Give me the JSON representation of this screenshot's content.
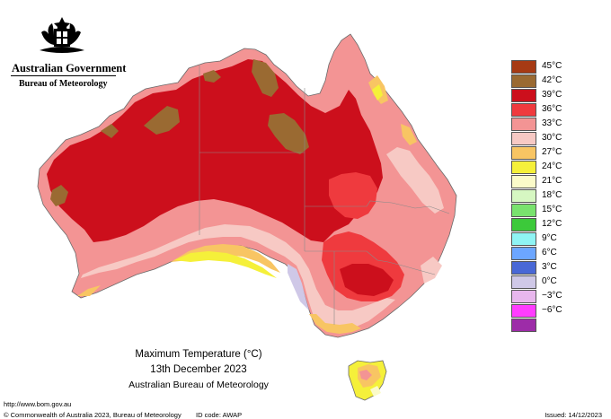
{
  "header": {
    "gov_name": "Australian Government",
    "bureau_name": "Bureau of Meteorology"
  },
  "legend": {
    "items": [
      {
        "label": "45°C",
        "color": "#a63a14"
      },
      {
        "label": "42°C",
        "color": "#9a6a32"
      },
      {
        "label": "39°C",
        "color": "#cc0f1c"
      },
      {
        "label": "36°C",
        "color": "#ef3a3e"
      },
      {
        "label": "33°C",
        "color": "#f39494"
      },
      {
        "label": "30°C",
        "color": "#f7c9c4"
      },
      {
        "label": "27°C",
        "color": "#f8c563"
      },
      {
        "label": "24°C",
        "color": "#f5f03a"
      },
      {
        "label": "21°C",
        "color": "#fbfbc9"
      },
      {
        "label": "18°C",
        "color": "#d6f7c2"
      },
      {
        "label": "15°C",
        "color": "#79e26e"
      },
      {
        "label": "12°C",
        "color": "#3cc93a"
      },
      {
        "label": "9°C",
        "color": "#8ff4f4"
      },
      {
        "label": "6°C",
        "color": "#6ca6ff"
      },
      {
        "label": "3°C",
        "color": "#4968d6"
      },
      {
        "label": "0°C",
        "color": "#cfc8e7"
      },
      {
        "label": "−3°C",
        "color": "#e8b7ed"
      },
      {
        "label": "−6°C",
        "color": "#ff3cff"
      },
      {
        "label": "",
        "color": "#9d2ca8"
      }
    ]
  },
  "caption": {
    "title": "Maximum Temperature (°C)",
    "date": "13th December 2023",
    "agency": "Australian Bureau of Meteorology"
  },
  "footer": {
    "url": "http://www.bom.gov.au",
    "copyright": "© Commonwealth of Australia 2023, Bureau of Meteorology",
    "id_code": "ID code: AWAP",
    "issued": "Issued: 14/12/2023"
  }
}
